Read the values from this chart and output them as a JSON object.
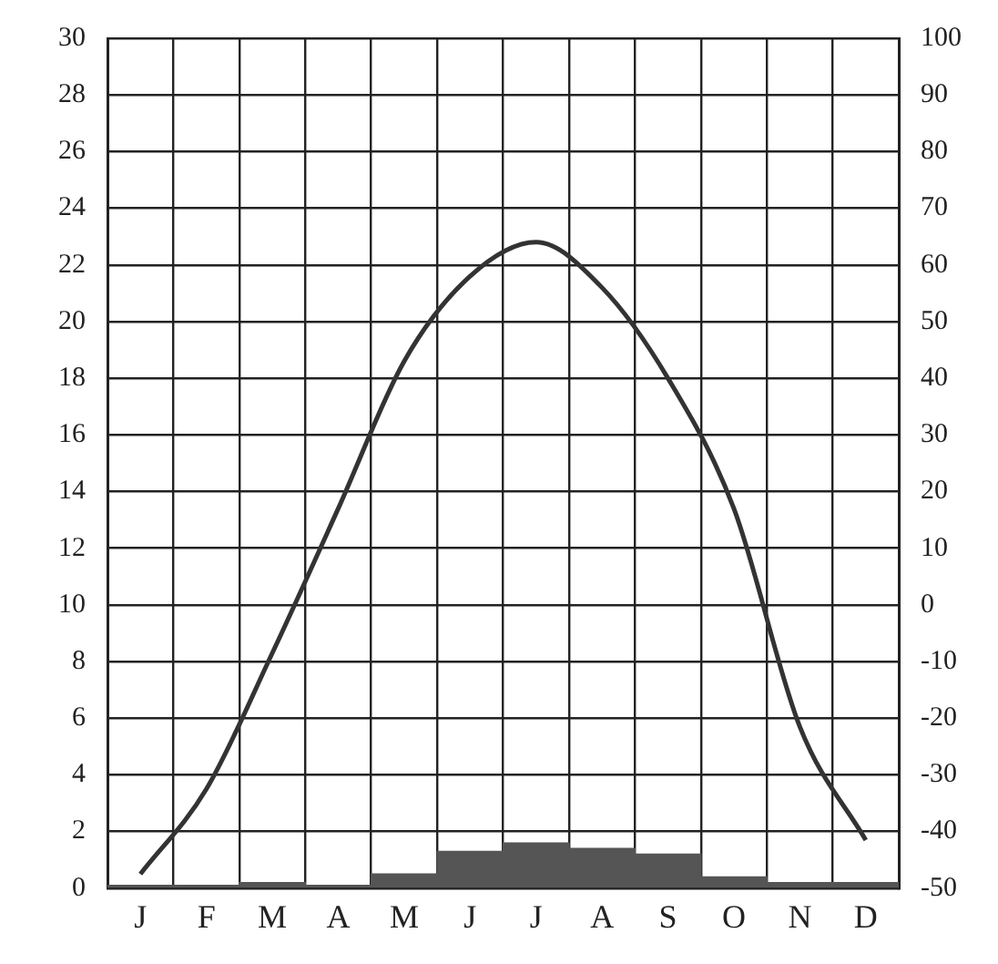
{
  "chart_data": {
    "type": "bar",
    "categories": [
      "J",
      "F",
      "M",
      "A",
      "M",
      "J",
      "J",
      "A",
      "S",
      "O",
      "N",
      "D"
    ],
    "series": [
      {
        "color": "#555555",
        "values": [
          0.1,
          0.1,
          0.2,
          0.1,
          0.5,
          1.3,
          1.6,
          1.4,
          1.2,
          0.4,
          0.2,
          0.2
        ]
      },
      {
        "type": "line",
        "color": "#333333",
        "values": [
          0.5,
          3.5,
          8.3,
          13.4,
          18.6,
          21.6,
          22.8,
          21.2,
          18.0,
          13.4,
          5.7,
          1.7
        ]
      }
    ],
    "ylim": [
      0,
      30
    ],
    "yticks": [
      0,
      2,
      4,
      6,
      8,
      10,
      12,
      14,
      16,
      18,
      20,
      22,
      24,
      26,
      28,
      30
    ],
    "y2lim": [
      -50,
      100
    ],
    "y2ticks": [
      -50,
      -40,
      -30,
      -20,
      -10,
      0,
      10,
      20,
      30,
      40,
      50,
      60,
      70,
      80,
      90,
      100
    ],
    "grid": true,
    "legend": false,
    "marker": "none",
    "line_style": "solid"
  }
}
